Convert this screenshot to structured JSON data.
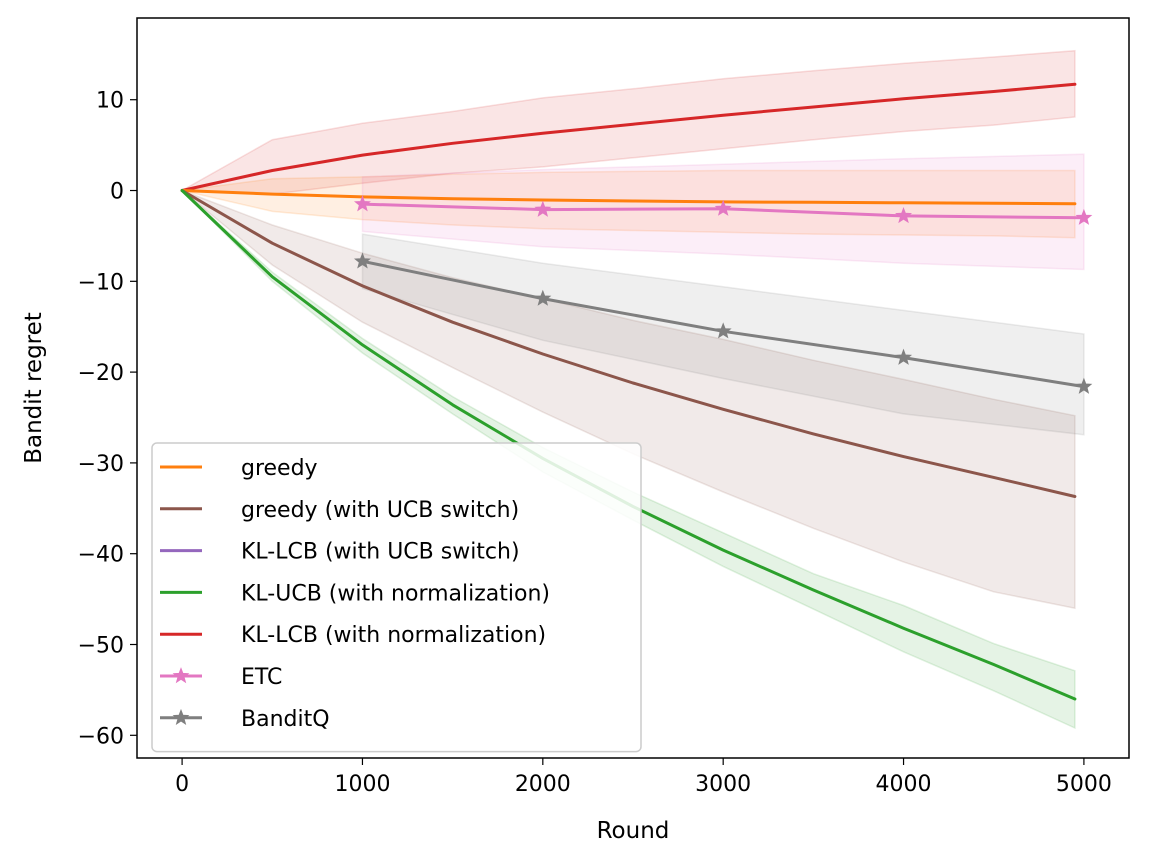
{
  "chart_data": {
    "type": "line",
    "title": "",
    "xlabel": "Round",
    "ylabel": "Bandit regret",
    "xlim": [
      -250,
      5250
    ],
    "ylim": [
      -62.5,
      19
    ],
    "xticks": [
      0,
      1000,
      2000,
      3000,
      4000,
      5000
    ],
    "xtick_labels": [
      "0",
      "1000",
      "2000",
      "3000",
      "4000",
      "5000"
    ],
    "yticks": [
      -60,
      -50,
      -40,
      -30,
      -20,
      -10,
      0,
      10
    ],
    "ytick_labels": [
      "−60",
      "−50",
      "−40",
      "−30",
      "−20",
      "−10",
      "0",
      "10"
    ],
    "grid": false,
    "legend_position": "lower-left",
    "series": [
      {
        "name": "KL-LCB (with normalization)",
        "color": "#d62728",
        "marker": "none",
        "x": [
          0,
          500,
          1000,
          1500,
          2000,
          2500,
          3000,
          3500,
          4000,
          4500,
          4950
        ],
        "y": [
          0,
          2.2,
          3.9,
          5.2,
          6.3,
          7.3,
          8.3,
          9.2,
          10.1,
          10.9,
          11.7
        ],
        "band_upper": [
          0,
          5.6,
          7.4,
          8.7,
          10.2,
          11.2,
          12.3,
          13.2,
          14.0,
          14.7,
          15.4
        ],
        "band_lower": [
          0,
          -0.4,
          0.8,
          1.9,
          2.6,
          3.6,
          4.6,
          5.6,
          6.5,
          7.2,
          8.1
        ]
      },
      {
        "name": "greedy",
        "color": "#ff7f0e",
        "marker": "none",
        "x": [
          0,
          500,
          1000,
          1500,
          2000,
          2500,
          3000,
          3500,
          4000,
          4500,
          4950
        ],
        "y": [
          0,
          -0.4,
          -0.7,
          -0.9,
          -1.05,
          -1.15,
          -1.25,
          -1.3,
          -1.35,
          -1.4,
          -1.45
        ],
        "band_upper": [
          0,
          1.3,
          1.5,
          1.8,
          2.0,
          2.1,
          2.2,
          2.2,
          2.2,
          2.2,
          2.2
        ],
        "band_lower": [
          0,
          -2.3,
          -3.2,
          -3.8,
          -4.2,
          -4.4,
          -4.6,
          -4.8,
          -4.9,
          -5.0,
          -5.2
        ]
      },
      {
        "name": "greedy (with UCB switch)",
        "color": "#8c564b",
        "marker": "none",
        "x": [
          0,
          500,
          1000,
          1500,
          2000,
          2500,
          3000,
          3500,
          4000,
          4500,
          4950
        ],
        "y": [
          0,
          -5.8,
          -10.5,
          -14.5,
          -18.0,
          -21.2,
          -24.1,
          -26.8,
          -29.3,
          -31.6,
          -33.7
        ],
        "band_upper": [
          0,
          -3.8,
          -6.9,
          -9.6,
          -11.9,
          -14.3,
          -16.4,
          -18.7,
          -20.8,
          -23.0,
          -24.8
        ],
        "band_lower": [
          0,
          -8.2,
          -14.5,
          -19.5,
          -24.4,
          -29.0,
          -33.2,
          -37.2,
          -40.9,
          -44.2,
          -46.0
        ]
      },
      {
        "name": "KL-LCB (with UCB switch)",
        "color": "#9467bd",
        "marker": "none",
        "x": [],
        "y": []
      },
      {
        "name": "KL-UCB (with normalization)",
        "color": "#2ca02c",
        "marker": "none",
        "x": [
          0,
          500,
          1000,
          1500,
          2000,
          2500,
          3000,
          3500,
          4000,
          4500,
          4950
        ],
        "y": [
          0,
          -9.5,
          -17.0,
          -23.6,
          -29.5,
          -34.8,
          -39.6,
          -44.0,
          -48.2,
          -52.2,
          -56.0
        ],
        "band_upper": [
          0,
          -9.0,
          -16.3,
          -22.7,
          -28.3,
          -33.2,
          -37.7,
          -42.2,
          -45.7,
          -49.9,
          -52.9
        ],
        "band_lower": [
          0,
          -10.0,
          -17.9,
          -24.6,
          -31.0,
          -36.3,
          -41.4,
          -46.1,
          -50.8,
          -55.1,
          -59.2
        ]
      },
      {
        "name": "ETC",
        "color": "#e377c2",
        "marker": "star",
        "x": [
          1000,
          2000,
          3000,
          4000,
          5000
        ],
        "y": [
          -1.5,
          -2.1,
          -2.0,
          -2.8,
          -3.0
        ],
        "band_upper": [
          1.5,
          2.3,
          2.9,
          3.5,
          4.0
        ],
        "band_lower": [
          -4.5,
          -6.2,
          -7.0,
          -8.0,
          -8.7
        ]
      },
      {
        "name": "BanditQ",
        "color": "#7f7f7f",
        "marker": "star",
        "x": [
          1000,
          2000,
          3000,
          4000,
          5000
        ],
        "y": [
          -7.8,
          -11.9,
          -15.5,
          -18.4,
          -21.6
        ],
        "band_upper": [
          -4.8,
          -8.0,
          -10.6,
          -13.2,
          -15.8
        ],
        "band_lower": [
          -10.8,
          -16.5,
          -20.7,
          -24.6,
          -26.9
        ]
      }
    ],
    "legend_order": [
      "greedy",
      "greedy (with UCB switch)",
      "KL-LCB (with UCB switch)",
      "KL-UCB (with normalization)",
      "KL-LCB (with normalization)",
      "ETC",
      "BanditQ"
    ]
  }
}
